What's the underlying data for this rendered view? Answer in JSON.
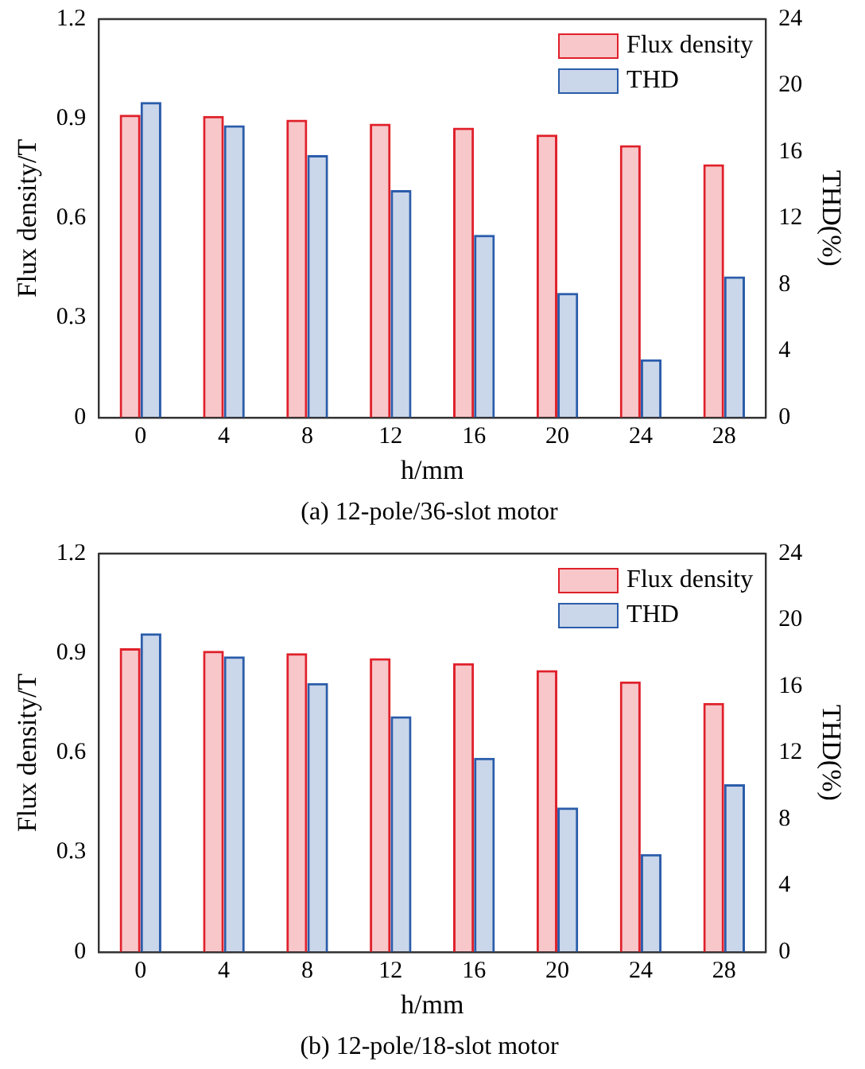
{
  "chart_data": [
    {
      "type": "bar",
      "title": "(a) 12-pole/36-slot motor",
      "xlabel": "h/mm",
      "ylabel": "Flux density/T",
      "y2label": "THD(%)",
      "categories": [
        "0",
        "4",
        "8",
        "12",
        "16",
        "20",
        "24",
        "28"
      ],
      "series": [
        {
          "name": "Flux density",
          "color": "#e0202a",
          "values": [
            0.912,
            0.908,
            0.897,
            0.885,
            0.873,
            0.852,
            0.82,
            0.763
          ]
        },
        {
          "name": "THD",
          "color": "#2a5caa",
          "axis": "y2",
          "values": [
            19.0,
            17.6,
            15.8,
            13.7,
            11.0,
            7.5,
            3.5,
            8.5
          ]
        }
      ],
      "ylim": [
        0,
        1.2
      ],
      "yticks": [
        0,
        0.3,
        0.6,
        0.9,
        1.2
      ],
      "y2lim": [
        0,
        24
      ],
      "y2ticks": [
        0,
        4,
        8,
        12,
        16,
        20,
        24
      ],
      "grid": false,
      "legend": "top right"
    },
    {
      "type": "bar",
      "title": "(b) 12-pole/18-slot motor",
      "xlabel": "h/mm",
      "ylabel": "Flux density/T",
      "y2label": "THD(%)",
      "categories": [
        "0",
        "4",
        "8",
        "12",
        "16",
        "20",
        "24",
        "28"
      ],
      "series": [
        {
          "name": "Flux density",
          "color": "#e0202a",
          "values": [
            0.915,
            0.907,
            0.9,
            0.885,
            0.87,
            0.849,
            0.815,
            0.75
          ]
        },
        {
          "name": "THD",
          "color": "#2a5caa",
          "axis": "y2",
          "values": [
            19.2,
            17.8,
            16.2,
            14.2,
            11.7,
            8.7,
            5.9,
            10.1
          ]
        }
      ],
      "ylim": [
        0,
        1.2
      ],
      "yticks": [
        0,
        0.3,
        0.6,
        0.9,
        1.2
      ],
      "y2lim": [
        0,
        24
      ],
      "y2ticks": [
        0,
        4,
        8,
        12,
        16,
        20,
        24
      ],
      "grid": false,
      "legend": "top right"
    }
  ]
}
